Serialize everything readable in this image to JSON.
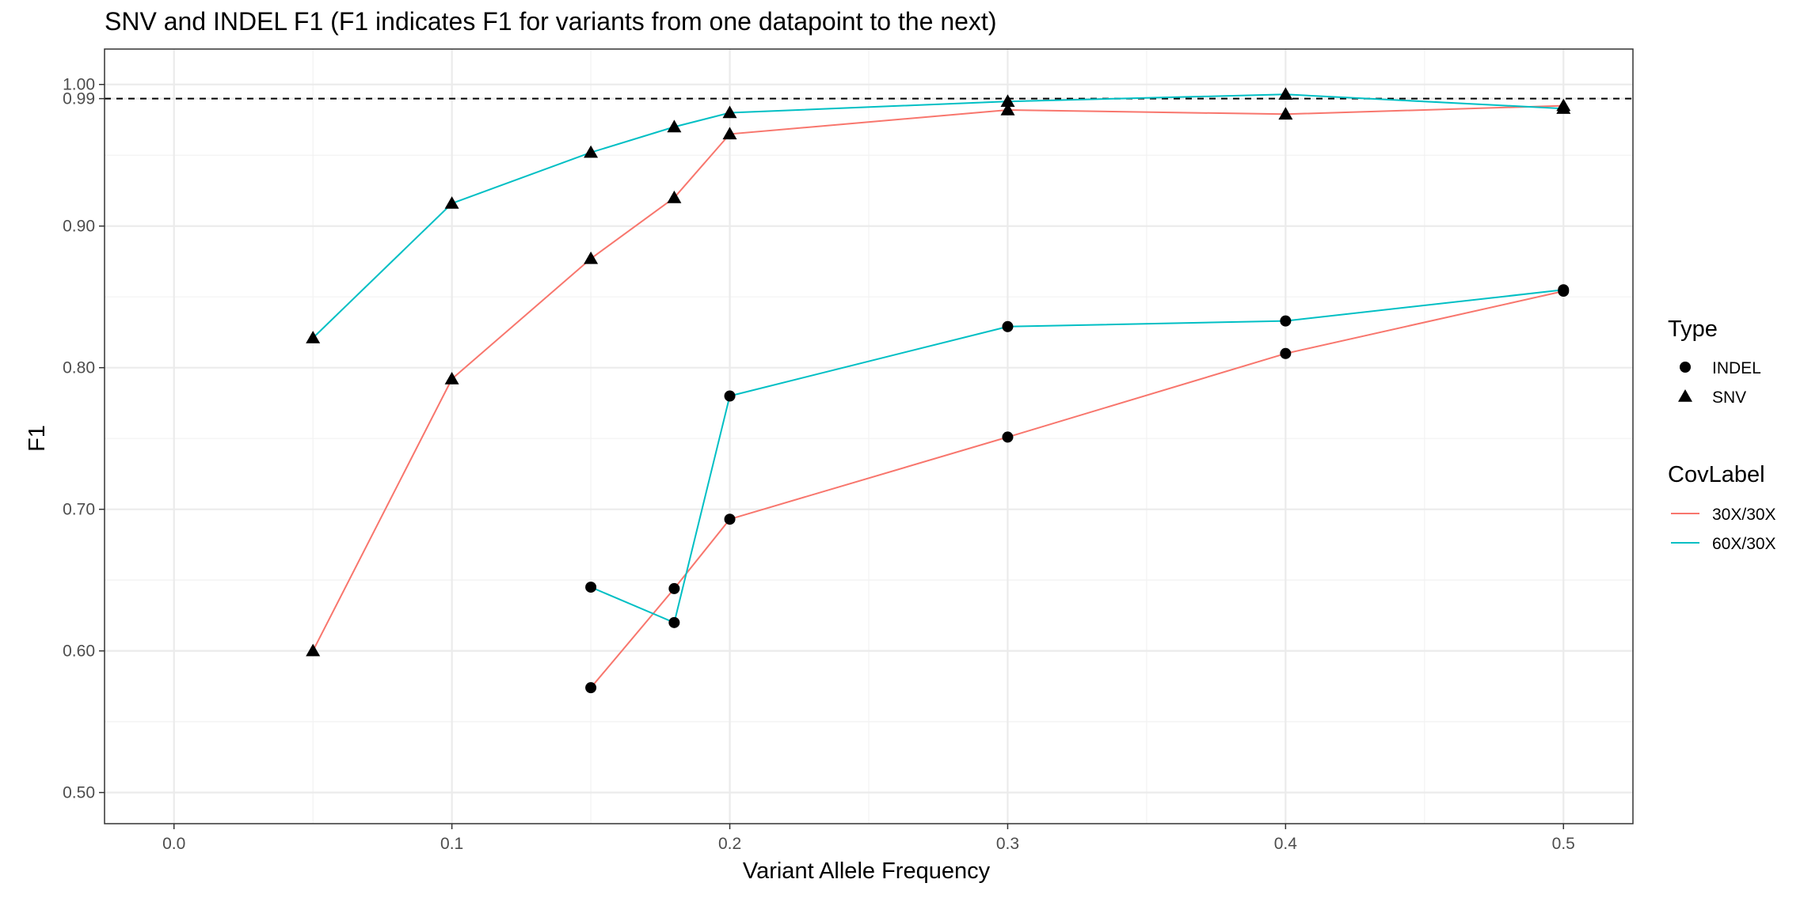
{
  "chart_data": {
    "type": "line",
    "title": "SNV and INDEL F1 (F1 indicates F1 for variants from one datapoint to the next)",
    "xlabel": "Variant Allele Frequency",
    "ylabel": "F1",
    "xlim": [
      -0.025,
      0.525
    ],
    "ylim": [
      0.478,
      1.025
    ],
    "x_ticks": [
      0.0,
      0.1,
      0.2,
      0.3,
      0.4,
      0.5
    ],
    "x_tick_labels": [
      "0.0",
      "0.1",
      "0.2",
      "0.3",
      "0.4",
      "0.5"
    ],
    "y_ticks": [
      0.5,
      0.6,
      0.7,
      0.8,
      0.9,
      0.99,
      1.0
    ],
    "y_tick_labels": [
      "0.50",
      "0.60",
      "0.70",
      "0.80",
      "0.90",
      "0.99",
      "1.00"
    ],
    "grid": true,
    "reference_line": {
      "y": 0.99,
      "style": "dashed",
      "color": "#000000"
    },
    "series": [
      {
        "name": "30X/30X",
        "type_group": "SNV",
        "color": "#F8766D",
        "shape": "triangle",
        "x": [
          0.05,
          0.1,
          0.15,
          0.18,
          0.2,
          0.3,
          0.4,
          0.5
        ],
        "y": [
          0.6,
          0.792,
          0.877,
          0.92,
          0.965,
          0.982,
          0.979,
          0.985
        ]
      },
      {
        "name": "60X/30X",
        "type_group": "SNV",
        "color": "#00BFC4",
        "shape": "triangle",
        "x": [
          0.05,
          0.1,
          0.15,
          0.18,
          0.2,
          0.3,
          0.4,
          0.5
        ],
        "y": [
          0.821,
          0.916,
          0.952,
          0.97,
          0.98,
          0.988,
          0.993,
          0.983
        ]
      },
      {
        "name": "30X/30X",
        "type_group": "INDEL",
        "color": "#F8766D",
        "shape": "circle",
        "x": [
          0.15,
          0.18,
          0.2,
          0.3,
          0.4,
          0.5
        ],
        "y": [
          0.574,
          0.644,
          0.693,
          0.751,
          0.81,
          0.854
        ]
      },
      {
        "name": "60X/30X",
        "type_group": "INDEL",
        "color": "#00BFC4",
        "shape": "circle",
        "x": [
          0.15,
          0.18,
          0.2,
          0.3,
          0.4,
          0.5
        ],
        "y": [
          0.645,
          0.62,
          0.78,
          0.829,
          0.833,
          0.855
        ]
      }
    ],
    "legend": {
      "placement": "right",
      "groups": [
        {
          "title": "Type",
          "items": [
            {
              "label": "INDEL",
              "shape": "circle"
            },
            {
              "label": "SNV",
              "shape": "triangle"
            }
          ]
        },
        {
          "title": "CovLabel",
          "items": [
            {
              "label": "30X/30X",
              "color": "#F8766D"
            },
            {
              "label": "60X/30X",
              "color": "#00BFC4"
            }
          ]
        }
      ]
    }
  }
}
